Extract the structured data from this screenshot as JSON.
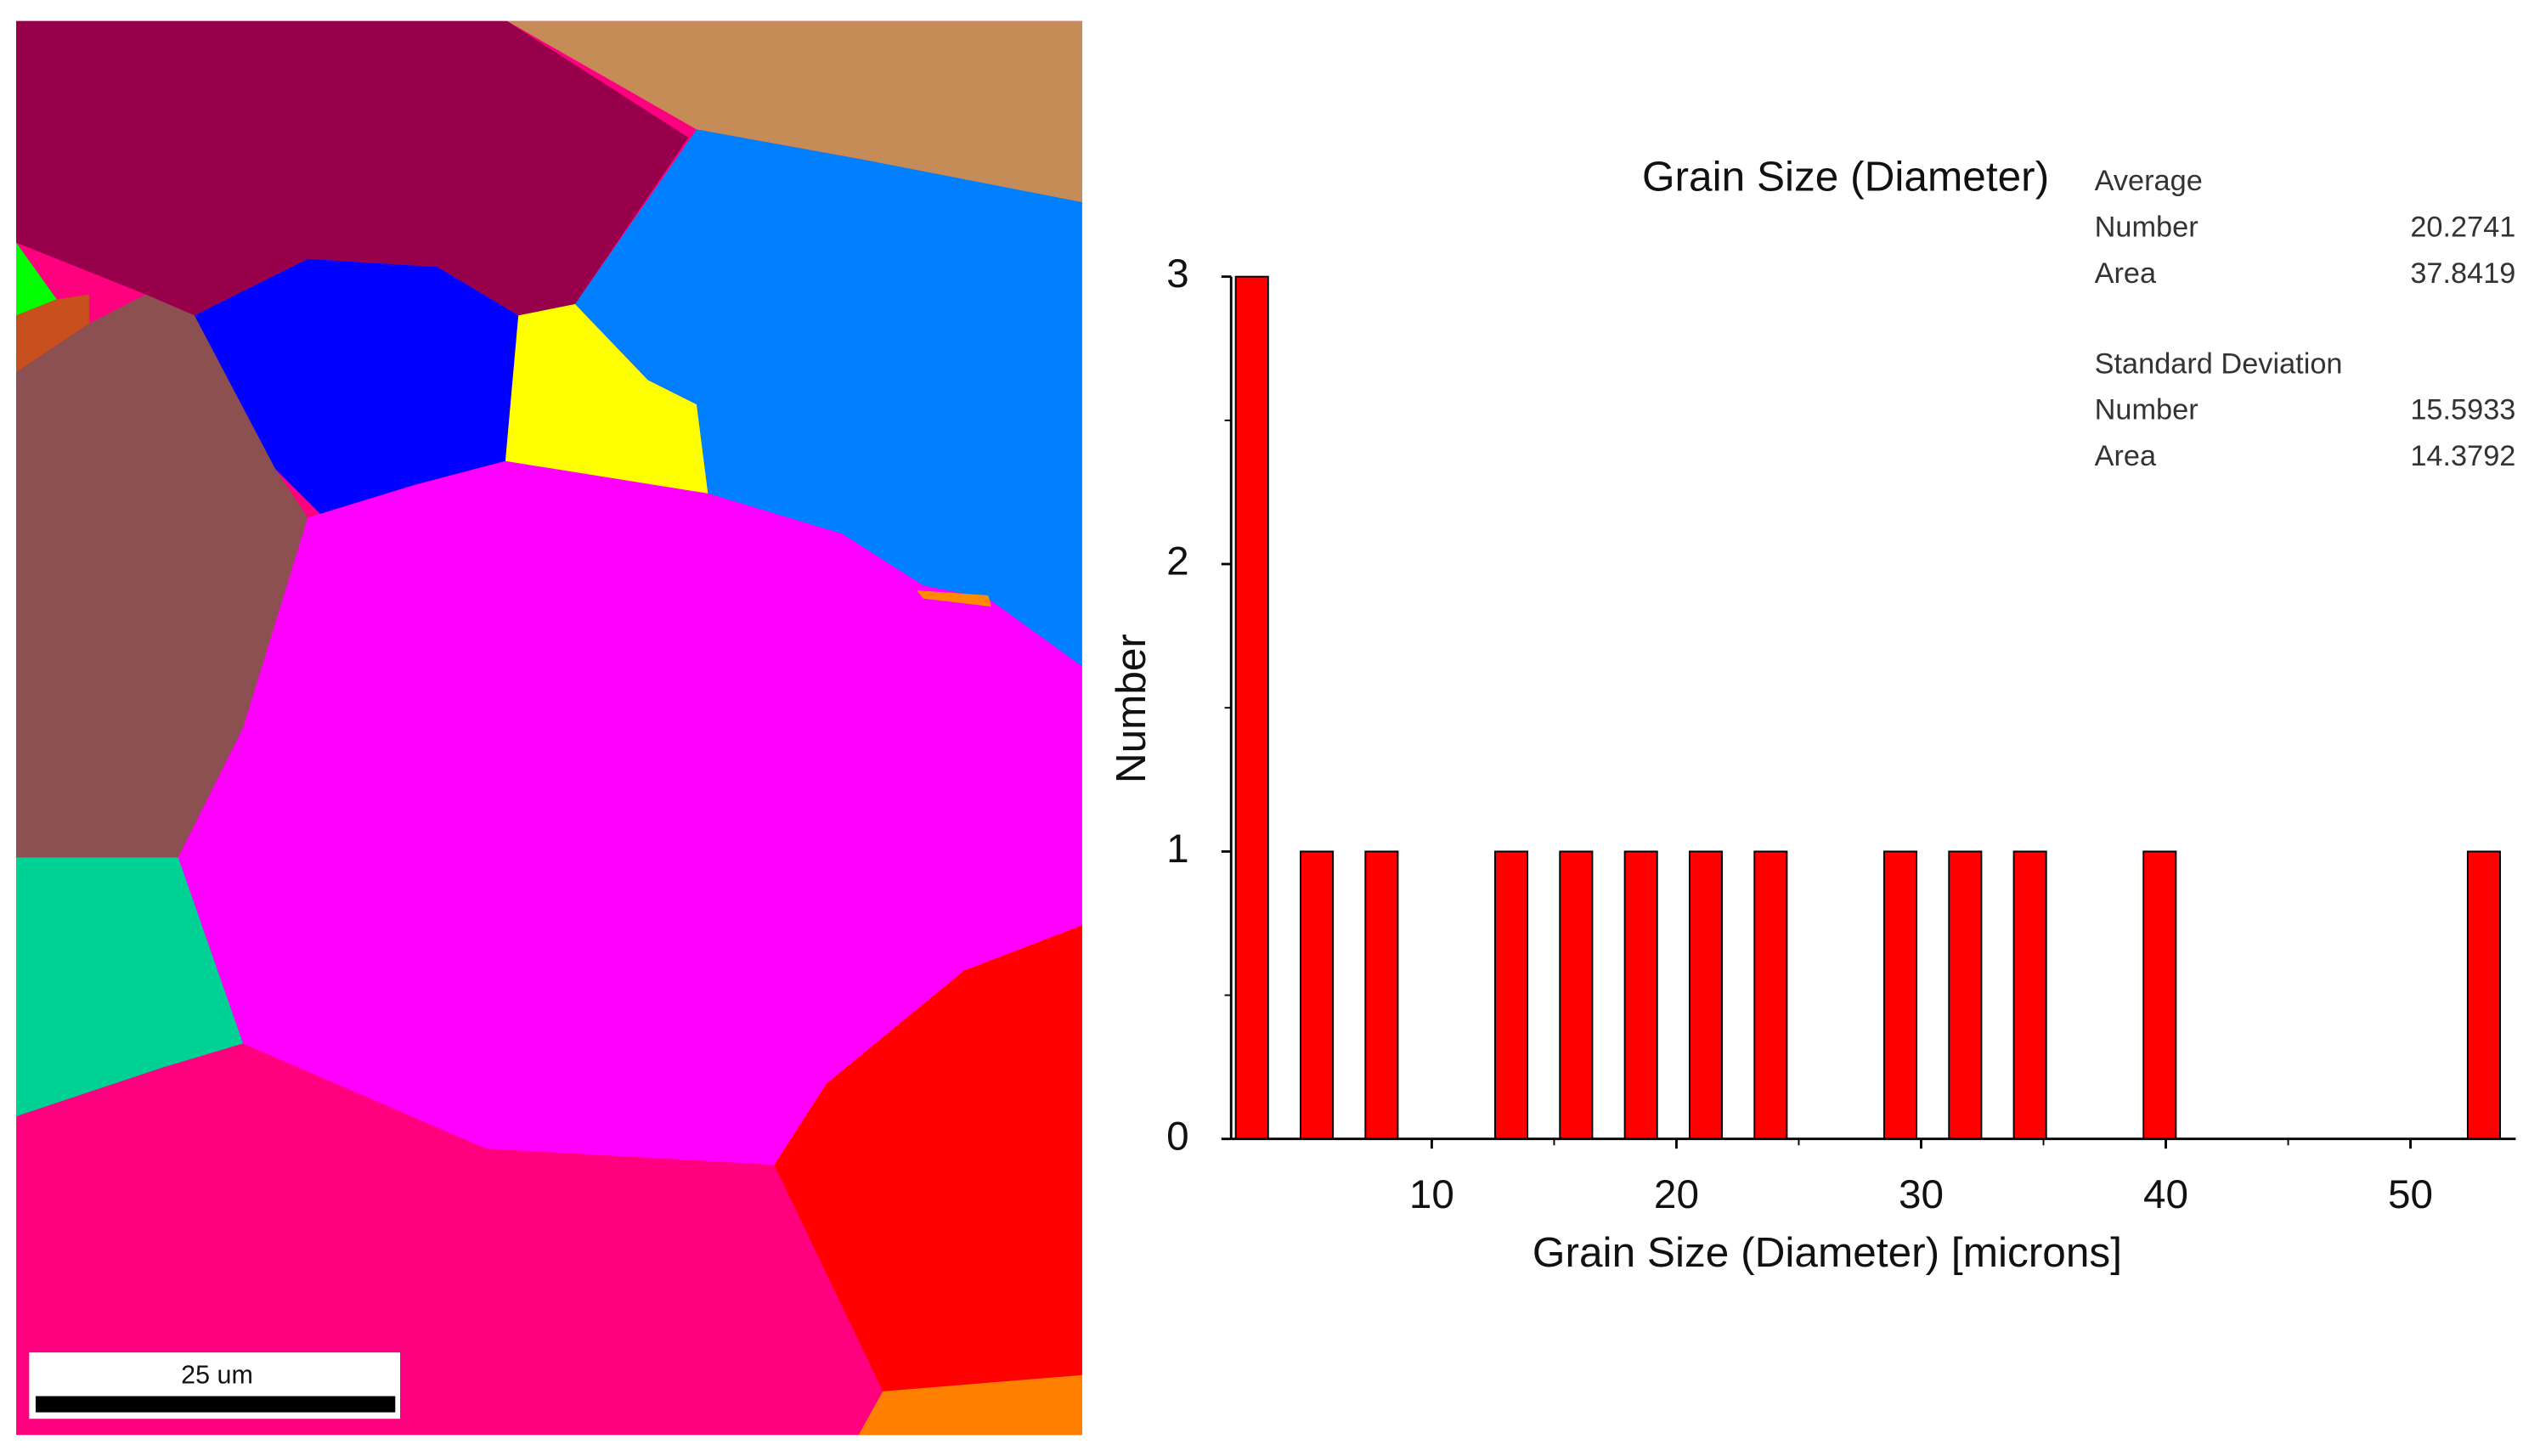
{
  "scale_bar": {
    "label": "25 um"
  },
  "chart_data": {
    "type": "histogram",
    "title": "Grain Size (Diameter)",
    "xlabel": "Grain Size (Diameter) [microns]",
    "ylabel": "Number",
    "bins": [
      1.325,
      3.975,
      6.625,
      9.275,
      11.925,
      14.575,
      17.225,
      19.875,
      22.525,
      25.175,
      27.825,
      30.475,
      33.125,
      35.775,
      38.425,
      41.075,
      43.725,
      46.375,
      49.025,
      51.675,
      54.325
    ],
    "counts": [
      3,
      1,
      1,
      0,
      1,
      1,
      1,
      1,
      1,
      0,
      1,
      1,
      1,
      0,
      1,
      0,
      0,
      0,
      0,
      1
    ],
    "color": "#ff0000",
    "xlim": [
      1.8,
      54.3
    ],
    "xticks": [
      10,
      20,
      30,
      40,
      50
    ],
    "xminorticks": [
      15,
      25,
      35,
      45
    ],
    "ylim": [
      0,
      3
    ],
    "yticks": [
      0,
      1,
      2,
      3
    ],
    "yminorticks": [
      0.5,
      1.5,
      2.5
    ],
    "stats": [
      {
        "heading": "Average",
        "rows": [
          {
            "label": "Number",
            "value": 20.2741
          },
          {
            "label": "Area",
            "value": 37.8419
          }
        ]
      },
      {
        "heading": "Standard Deviation",
        "rows": [
          {
            "label": "Number",
            "value": 15.5933
          },
          {
            "label": "Area",
            "value": 14.3792
          }
        ]
      }
    ]
  }
}
